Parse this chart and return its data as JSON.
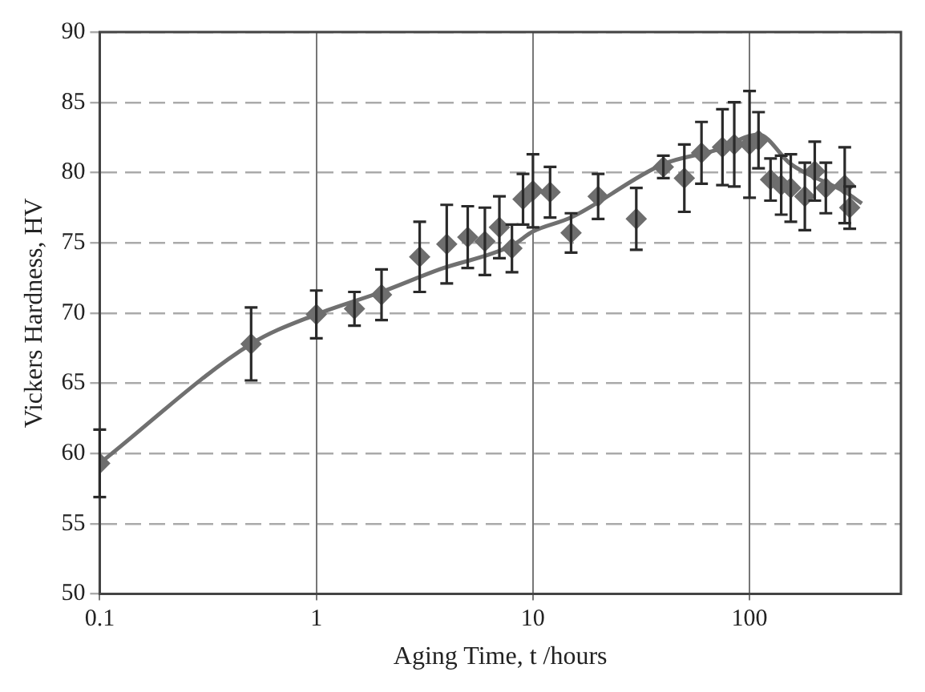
{
  "chart_data": {
    "type": "scatter",
    "xlabel": "Aging Time, t /hours",
    "ylabel": "Vickers Hardness, HV",
    "log": "x",
    "xlim": [
      0.1,
      500
    ],
    "xticks": [
      0.1,
      1,
      10,
      100
    ],
    "ylim": [
      50,
      90
    ],
    "yticks": [
      50,
      55,
      60,
      65,
      70,
      75,
      80,
      85,
      90
    ],
    "grid": true,
    "legend": false,
    "marker": "diamond",
    "series": [
      {
        "color": "#6e6e6e",
        "x": [
          0.1,
          0.5,
          1,
          1.5,
          2,
          3,
          4,
          5,
          6,
          7,
          8,
          9,
          10,
          12,
          15,
          20,
          30,
          40,
          50,
          60,
          75,
          85,
          100,
          110,
          125,
          140,
          155,
          180,
          200,
          225,
          275,
          290
        ],
        "values": [
          59.3,
          67.8,
          69.9,
          70.3,
          71.3,
          74.0,
          74.9,
          75.4,
          75.1,
          76.1,
          74.6,
          78.1,
          78.7,
          78.6,
          75.7,
          78.3,
          76.7,
          80.4,
          79.6,
          81.4,
          81.8,
          82.0,
          82.0,
          82.3,
          79.5,
          79.1,
          78.9,
          78.3,
          80.1,
          78.9,
          79.1,
          77.5
        ],
        "errors": [
          2.4,
          2.6,
          1.7,
          1.2,
          1.8,
          2.5,
          2.8,
          2.2,
          2.4,
          2.2,
          1.7,
          1.8,
          2.6,
          1.8,
          1.4,
          1.6,
          2.2,
          0.8,
          2.4,
          2.2,
          2.7,
          3.0,
          3.8,
          2.0,
          1.5,
          2.1,
          2.4,
          2.4,
          2.1,
          1.8,
          2.7,
          1.5
        ]
      },
      {
        "type": "line",
        "color": "#707070",
        "marker": "none",
        "x": [
          0.1,
          0.5,
          1,
          2,
          3.7,
          8,
          10,
          15,
          40,
          70,
          110,
          155,
          277,
          330
        ],
        "values": [
          59.3,
          67.8,
          69.9,
          71.5,
          73.1,
          74.8,
          75.8,
          76.8,
          80.6,
          81.6,
          82.7,
          80.6,
          78.6,
          77.8
        ]
      }
    ]
  }
}
